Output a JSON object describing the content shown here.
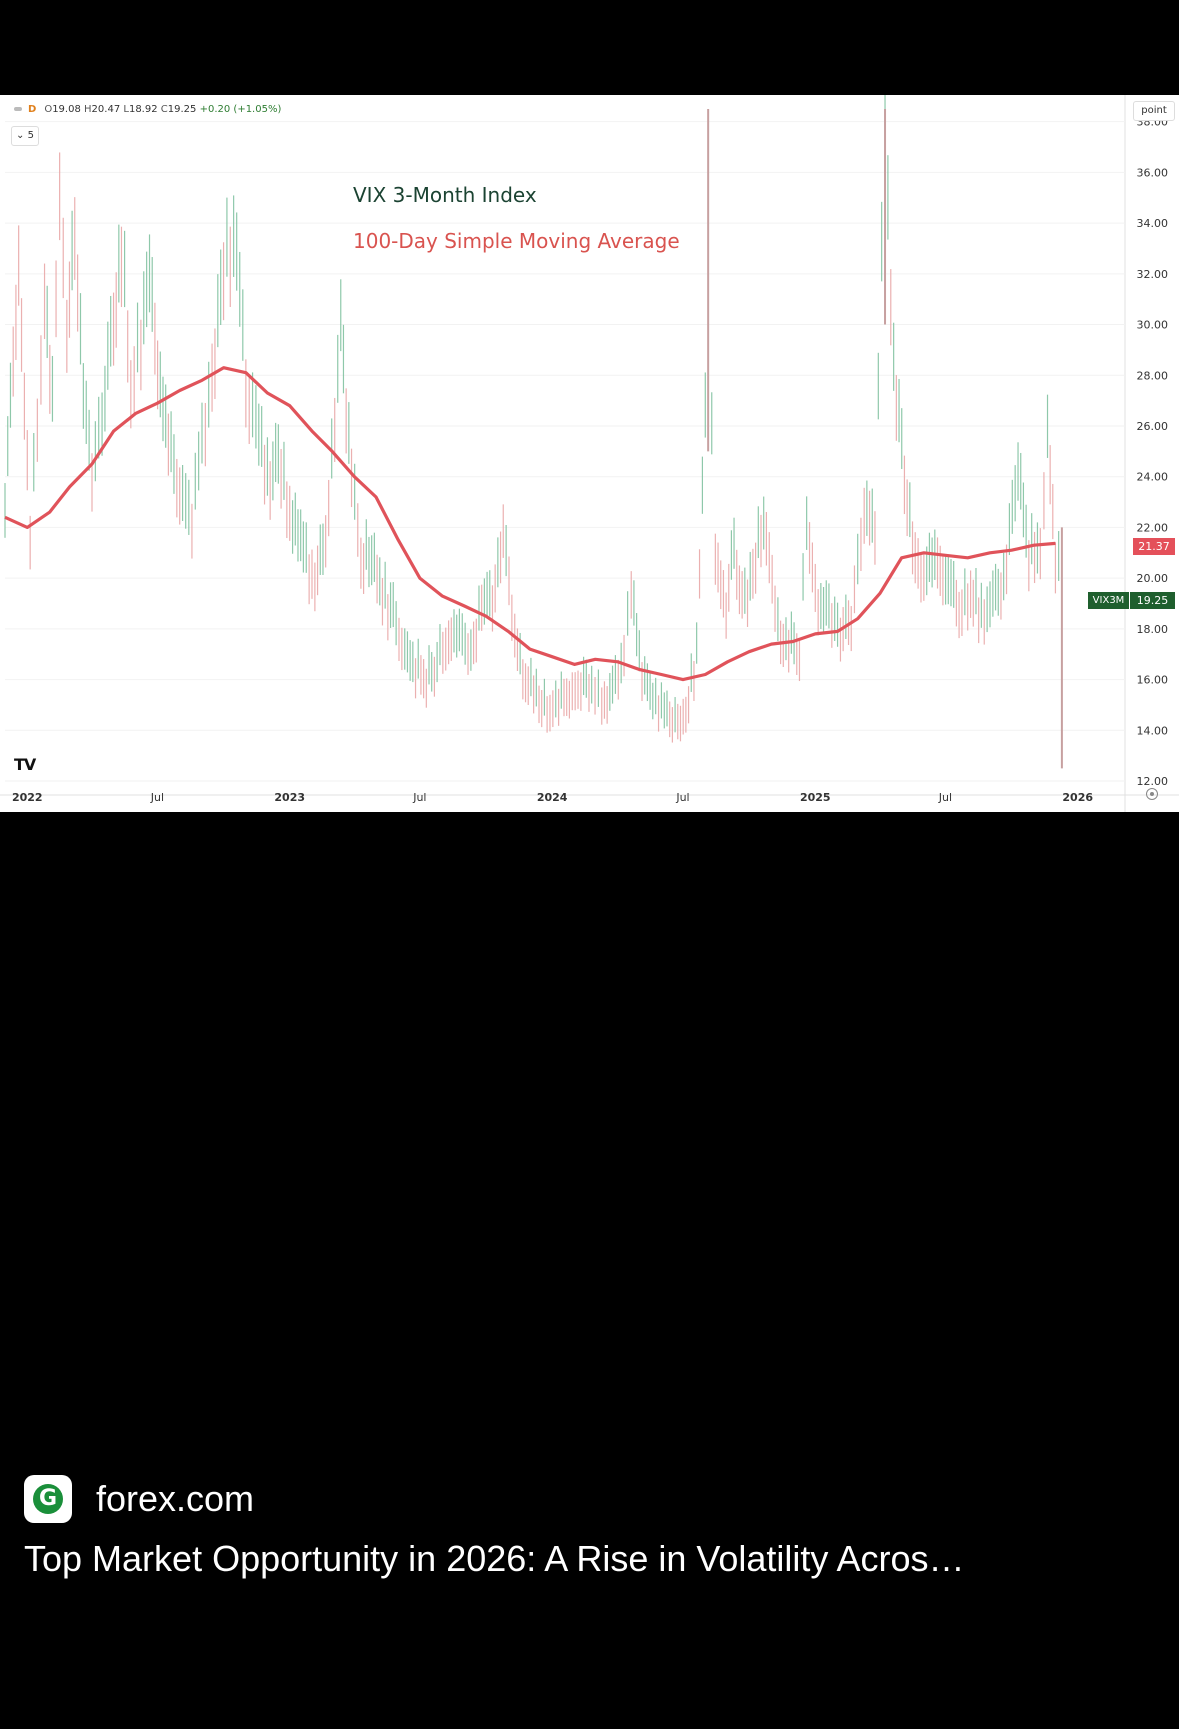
{
  "ohlc": {
    "timeframe": "D",
    "open_label": "O",
    "open": "19.08",
    "high_label": "H",
    "high": "20.47",
    "low_label": "L",
    "low": "18.92",
    "close_label": "C",
    "close": "19.25",
    "change": "+0.20 (+1.05%)"
  },
  "collapse_label": "⌄ 5",
  "unit_label": "point",
  "tv_logo": "TV",
  "sma_badge": "21.37",
  "symbol_badge": "VIX3M",
  "price_badge": "19.25",
  "colors": {
    "price_up": "#26a69a",
    "price_down": "#ef5350",
    "sma": "#e0535a",
    "legend_title": "#1b4332",
    "badge_green": "#1f5f2e"
  },
  "chart_data": {
    "type": "line",
    "title": "VIX 3-Month Index",
    "subtitle": "100-Day Simple Moving Average",
    "xlabel": "",
    "ylabel": "",
    "ylim": [
      12,
      38.5
    ],
    "y_ticks": [
      "38.00",
      "36.00",
      "34.00",
      "32.00",
      "30.00",
      "28.00",
      "26.00",
      "24.00",
      "22.00",
      "20.00",
      "18.00",
      "16.00",
      "14.00",
      "12.00"
    ],
    "x_ticks": [
      "2022",
      "Jul",
      "2023",
      "Jul",
      "2024",
      "Jul",
      "2025",
      "Jul",
      "2026"
    ],
    "x_range": [
      "2021-12",
      "2026-02"
    ],
    "series": [
      {
        "name": "VIX 3-Month Index",
        "points": [
          [
            "2021-12-01",
            22.5
          ],
          [
            "2021-12-20",
            33
          ],
          [
            "2022-01-05",
            22
          ],
          [
            "2022-01-15",
            26
          ],
          [
            "2022-01-25",
            31
          ],
          [
            "2022-02-05",
            27
          ],
          [
            "2022-02-15",
            36
          ],
          [
            "2022-02-25",
            30
          ],
          [
            "2022-03-08",
            34
          ],
          [
            "2022-03-20",
            27
          ],
          [
            "2022-04-01",
            24
          ],
          [
            "2022-04-15",
            26
          ],
          [
            "2022-05-01",
            30
          ],
          [
            "2022-05-12",
            33
          ],
          [
            "2022-05-25",
            28
          ],
          [
            "2022-06-08",
            29
          ],
          [
            "2022-06-20",
            32
          ],
          [
            "2022-07-05",
            27
          ],
          [
            "2022-07-20",
            25
          ],
          [
            "2022-08-05",
            23
          ],
          [
            "2022-08-18",
            22.5
          ],
          [
            "2022-09-01",
            25
          ],
          [
            "2022-09-15",
            28
          ],
          [
            "2022-10-01",
            32
          ],
          [
            "2022-10-15",
            33.5
          ],
          [
            "2022-11-01",
            28
          ],
          [
            "2022-11-15",
            26
          ],
          [
            "2022-12-01",
            24
          ],
          [
            "2022-12-20",
            24.5
          ],
          [
            "2023-01-05",
            22
          ],
          [
            "2023-01-20",
            21
          ],
          [
            "2023-02-05",
            20
          ],
          [
            "2023-02-20",
            21.5
          ],
          [
            "2023-03-13",
            29.5
          ],
          [
            "2023-03-28",
            24
          ],
          [
            "2023-04-10",
            21
          ],
          [
            "2023-04-25",
            20.5
          ],
          [
            "2023-05-10",
            19.5
          ],
          [
            "2023-05-25",
            18.5
          ],
          [
            "2023-06-10",
            17
          ],
          [
            "2023-06-25",
            16.5
          ],
          [
            "2023-07-10",
            16
          ],
          [
            "2023-07-25",
            16.5
          ],
          [
            "2023-08-10",
            18
          ],
          [
            "2023-08-25",
            17.5
          ],
          [
            "2023-09-10",
            17
          ],
          [
            "2023-09-25",
            19
          ],
          [
            "2023-10-10",
            19
          ],
          [
            "2023-10-25",
            22
          ],
          [
            "2023-11-10",
            18
          ],
          [
            "2023-11-25",
            16
          ],
          [
            "2023-12-10",
            15.5
          ],
          [
            "2023-12-25",
            15
          ],
          [
            "2024-01-10",
            15.2
          ],
          [
            "2024-01-25",
            15.5
          ],
          [
            "2024-02-10",
            15.8
          ],
          [
            "2024-02-25",
            15.5
          ],
          [
            "2024-03-10",
            15.3
          ],
          [
            "2024-03-25",
            15.6
          ],
          [
            "2024-04-10",
            17
          ],
          [
            "2024-04-20",
            19.5
          ],
          [
            "2024-05-05",
            16
          ],
          [
            "2024-05-20",
            15
          ],
          [
            "2024-06-05",
            14.8
          ],
          [
            "2024-06-20",
            14.5
          ],
          [
            "2024-07-05",
            14.7
          ],
          [
            "2024-07-20",
            17
          ],
          [
            "2024-08-05",
            30
          ],
          [
            "2024-08-15",
            21
          ],
          [
            "2024-08-30",
            19
          ],
          [
            "2024-09-10",
            21
          ],
          [
            "2024-09-25",
            19
          ],
          [
            "2024-10-10",
            21
          ],
          [
            "2024-10-25",
            22
          ],
          [
            "2024-11-10",
            18
          ],
          [
            "2024-11-25",
            17.5
          ],
          [
            "2024-12-10",
            17
          ],
          [
            "2024-12-20",
            22
          ],
          [
            "2025-01-05",
            19
          ],
          [
            "2025-01-20",
            18.5
          ],
          [
            "2025-02-05",
            18
          ],
          [
            "2025-02-20",
            18.5
          ],
          [
            "2025-03-10",
            23
          ],
          [
            "2025-03-25",
            22
          ],
          [
            "2025-04-08",
            38
          ],
          [
            "2025-04-20",
            28
          ],
          [
            "2025-05-05",
            24
          ],
          [
            "2025-05-20",
            21
          ],
          [
            "2025-06-05",
            20
          ],
          [
            "2025-06-20",
            21
          ],
          [
            "2025-07-05",
            19.5
          ],
          [
            "2025-07-20",
            19
          ],
          [
            "2025-08-05",
            19.5
          ],
          [
            "2025-08-20",
            18.5
          ],
          [
            "2025-09-05",
            19
          ],
          [
            "2025-09-20",
            19.5
          ],
          [
            "2025-10-10",
            24
          ],
          [
            "2025-10-25",
            21
          ],
          [
            "2025-11-10",
            21
          ],
          [
            "2025-11-20",
            26
          ],
          [
            "2025-12-01",
            21
          ],
          [
            "2025-12-10",
            20
          ],
          [
            "2025-12-15",
            19.25
          ]
        ]
      },
      {
        "name": "100-Day Simple Moving Average",
        "points": [
          [
            "2021-12-01",
            22.4
          ],
          [
            "2022-01-01",
            22
          ],
          [
            "2022-02-01",
            22.6
          ],
          [
            "2022-03-01",
            23.6
          ],
          [
            "2022-04-01",
            24.5
          ],
          [
            "2022-05-01",
            25.8
          ],
          [
            "2022-06-01",
            26.5
          ],
          [
            "2022-07-01",
            26.9
          ],
          [
            "2022-08-01",
            27.4
          ],
          [
            "2022-09-01",
            27.8
          ],
          [
            "2022-10-01",
            28.3
          ],
          [
            "2022-11-01",
            28.1
          ],
          [
            "2022-12-01",
            27.3
          ],
          [
            "2023-01-01",
            26.8
          ],
          [
            "2023-02-01",
            25.8
          ],
          [
            "2023-03-01",
            25.0
          ],
          [
            "2023-04-01",
            24.0
          ],
          [
            "2023-05-01",
            23.2
          ],
          [
            "2023-06-01",
            21.5
          ],
          [
            "2023-07-01",
            20.0
          ],
          [
            "2023-08-01",
            19.3
          ],
          [
            "2023-09-01",
            18.9
          ],
          [
            "2023-10-01",
            18.5
          ],
          [
            "2023-11-01",
            17.9
          ],
          [
            "2023-12-01",
            17.2
          ],
          [
            "2024-01-01",
            16.9
          ],
          [
            "2024-02-01",
            16.6
          ],
          [
            "2024-03-01",
            16.8
          ],
          [
            "2024-04-01",
            16.7
          ],
          [
            "2024-05-01",
            16.4
          ],
          [
            "2024-06-01",
            16.2
          ],
          [
            "2024-07-01",
            16.0
          ],
          [
            "2024-08-01",
            16.2
          ],
          [
            "2024-09-01",
            16.7
          ],
          [
            "2024-10-01",
            17.1
          ],
          [
            "2024-11-01",
            17.4
          ],
          [
            "2024-12-01",
            17.5
          ],
          [
            "2025-01-01",
            17.8
          ],
          [
            "2025-02-01",
            17.9
          ],
          [
            "2025-03-01",
            18.4
          ],
          [
            "2025-04-01",
            19.4
          ],
          [
            "2025-05-01",
            20.8
          ],
          [
            "2025-06-01",
            21.0
          ],
          [
            "2025-07-01",
            20.9
          ],
          [
            "2025-08-01",
            20.8
          ],
          [
            "2025-09-01",
            21.0
          ],
          [
            "2025-10-01",
            21.1
          ],
          [
            "2025-11-01",
            21.3
          ],
          [
            "2025-12-01",
            21.37
          ]
        ]
      }
    ]
  },
  "source": {
    "name": "forex.com",
    "logo_letter": "G"
  },
  "headline": "Top Market Opportunity in 2026: A Rise in Volatility Acros…"
}
